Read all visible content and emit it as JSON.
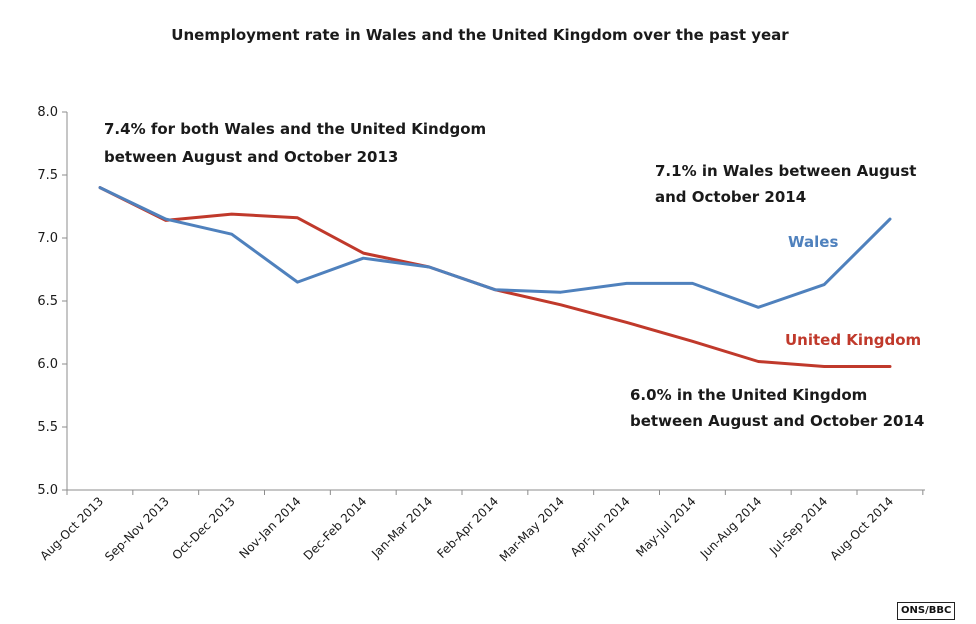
{
  "chart_data": {
    "type": "line",
    "title": "Unemployment rate in Wales and the United Kingdom over the past year",
    "categories": [
      "Aug-Oct 2013",
      "Sep-Nov 2013",
      "Oct-Dec 2013",
      "Nov-Jan 2014",
      "Dec-Feb 2014",
      "Jan-Mar 2014",
      "Feb-Apr 2014",
      "Mar-May 2014",
      "Apr-Jun 2014",
      "May-Jul 2014",
      "Jun-Aug 2014",
      "Jul-Sep 2014",
      "Aug-Oct 2014"
    ],
    "y_ticks": [
      "5.0",
      "5.5",
      "6.0",
      "6.5",
      "7.0",
      "7.5",
      "8.0"
    ],
    "ylim": [
      5.0,
      8.0
    ],
    "grid": false,
    "series": [
      {
        "name": "Wales",
        "color": "#4f81bd",
        "values": [
          7.4,
          7.15,
          7.03,
          6.65,
          6.84,
          6.77,
          6.59,
          6.57,
          6.64,
          6.64,
          6.45,
          6.63,
          7.15
        ]
      },
      {
        "name": "United Kingdom",
        "color": "#c0392b",
        "values": [
          7.4,
          7.14,
          7.19,
          7.16,
          6.88,
          6.77,
          6.59,
          6.47,
          6.33,
          6.18,
          6.02,
          5.98,
          5.98
        ]
      }
    ],
    "annotations": [
      {
        "lines": [
          "7.4% for both Wales and the United Kindgom",
          "between August and October 2013"
        ]
      },
      {
        "lines": [
          "7.1% in Wales between August",
          "and October 2014"
        ]
      },
      {
        "lines": [
          "6.0% in the United Kingdom",
          "between August and October 2014"
        ]
      }
    ]
  },
  "credit": "ONS/BBC"
}
